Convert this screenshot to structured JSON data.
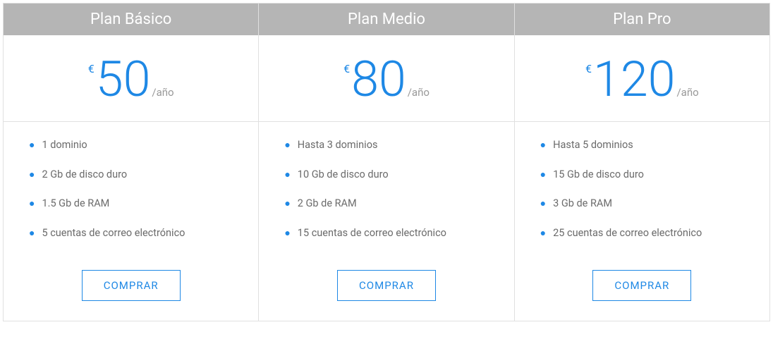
{
  "colors": {
    "accent": "#1e88e5",
    "header_bg": "#b5b5b5",
    "header_text": "#ffffff",
    "border": "#e0e0e0",
    "feature_text": "#6b6b6b",
    "period_text": "#999999"
  },
  "plans": [
    {
      "title": "Plan Básico",
      "currency": "€",
      "amount": "50",
      "period": "/año",
      "features": [
        "1 dominio",
        "2 Gb de disco duro",
        "1.5 Gb de RAM",
        "5 cuentas de correo electrónico"
      ],
      "cta": "COMPRAR"
    },
    {
      "title": "Plan Medio",
      "currency": "€",
      "amount": "80",
      "period": "/año",
      "features": [
        "Hasta 3 dominios",
        "10 Gb de disco duro",
        "2 Gb de RAM",
        "15 cuentas de correo electrónico"
      ],
      "cta": "COMPRAR"
    },
    {
      "title": "Plan Pro",
      "currency": "€",
      "amount": "120",
      "period": "/año",
      "features": [
        "Hasta 5 dominios",
        "15 Gb de disco duro",
        "3 Gb de RAM",
        "25 cuentas de correo electrónico"
      ],
      "cta": "COMPRAR"
    }
  ]
}
